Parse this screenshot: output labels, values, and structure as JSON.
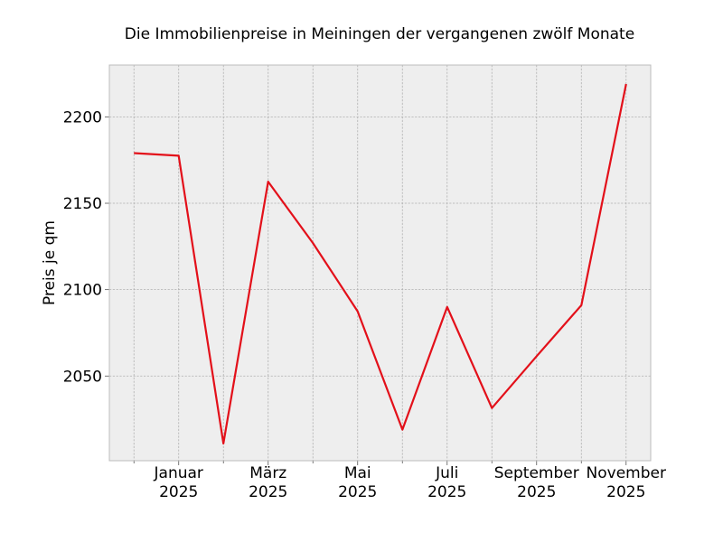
{
  "chart_data": {
    "type": "line",
    "title": "Die Immobilienpreise in Meiningen der vergangenen zwölf Monate",
    "xlabel": "",
    "ylabel": "Preis je qm",
    "x": [
      "2024-12",
      "2025-01",
      "2025-02",
      "2025-03",
      "2025-04",
      "2025-05",
      "2025-06",
      "2025-07",
      "2025-08",
      "2025-09",
      "2025-10",
      "2025-11"
    ],
    "series": [
      {
        "values": [
          2179,
          2177.5,
          2011,
          2162.5,
          2127,
          2087.5,
          2019,
          2090,
          2031.5,
          2061.5,
          2091,
          2219
        ],
        "color": "#e3101a"
      }
    ],
    "ylim": [
      2001,
      2230
    ],
    "yticks": [
      2050,
      2100,
      2150,
      2200
    ],
    "xticks": [
      {
        "x": "2025-01",
        "month": "Januar",
        "year": "2025"
      },
      {
        "x": "2025-03",
        "month": "März",
        "year": "2025"
      },
      {
        "x": "2025-05",
        "month": "Mai",
        "year": "2025"
      },
      {
        "x": "2025-07",
        "month": "Juli",
        "year": "2025"
      },
      {
        "x": "2025-09",
        "month": "September",
        "year": "2025"
      },
      {
        "x": "2025-11",
        "month": "November",
        "year": "2025"
      }
    ],
    "minor_xticks": [
      "2024-12",
      "2025-02",
      "2025-04",
      "2025-06",
      "2025-08",
      "2025-10"
    ],
    "grid": true,
    "background": "#eeeeee",
    "frame_color": "#bcbcbc"
  }
}
